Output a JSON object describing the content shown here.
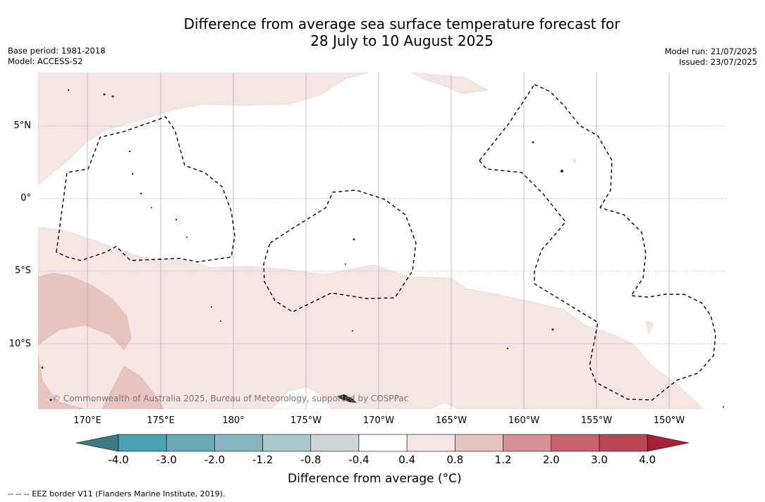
{
  "title": {
    "line1": "Difference from average sea surface temperature forecast for",
    "line2": "28 July to 10 August 2025"
  },
  "meta": {
    "base_period": "Base period: 1981-2018",
    "model": "Model: ACCESS-S2",
    "model_run": "Model run: 21/07/2025",
    "issued": "Issued: 23/07/2025"
  },
  "lat_labels": [
    "5°N",
    "0°",
    "5°S",
    "10°S"
  ],
  "lon_labels": [
    "170°E",
    "175°E",
    "180°",
    "175°W",
    "170°W",
    "165°W",
    "160°W",
    "155°W",
    "150°W"
  ],
  "copyright": "© Commonwealth of Australia 2025, Bureau of Meteorology, supported by COSPPac",
  "colorbar": {
    "ticks": [
      "-4.0",
      "-3.0",
      "-2.0",
      "-1.2",
      "-0.8",
      "-0.4",
      "0.4",
      "0.8",
      "1.2",
      "2.0",
      "3.0",
      "4.0"
    ],
    "colors": {
      "under": "#3e7a82",
      "bins": [
        "#4ba2b2",
        "#68a9b8",
        "#87b6c2",
        "#a8c8cc",
        "#cdd7d7",
        "#ffffff",
        "#f5e6e4",
        "#e7c4bf",
        "#d79096",
        "#c9636d",
        "#bd4656"
      ],
      "over": "#a91f36"
    },
    "label": "Difference from average (°C)"
  },
  "footnote": "--  --  -- EEZ border V11 (Flanders Marine Institute, 2019).",
  "palette": {
    "anomaly_light": "#f5e6e4",
    "anomaly_medium": "#e7c4bf",
    "grid": "#888888",
    "eez_border": "#000000"
  }
}
